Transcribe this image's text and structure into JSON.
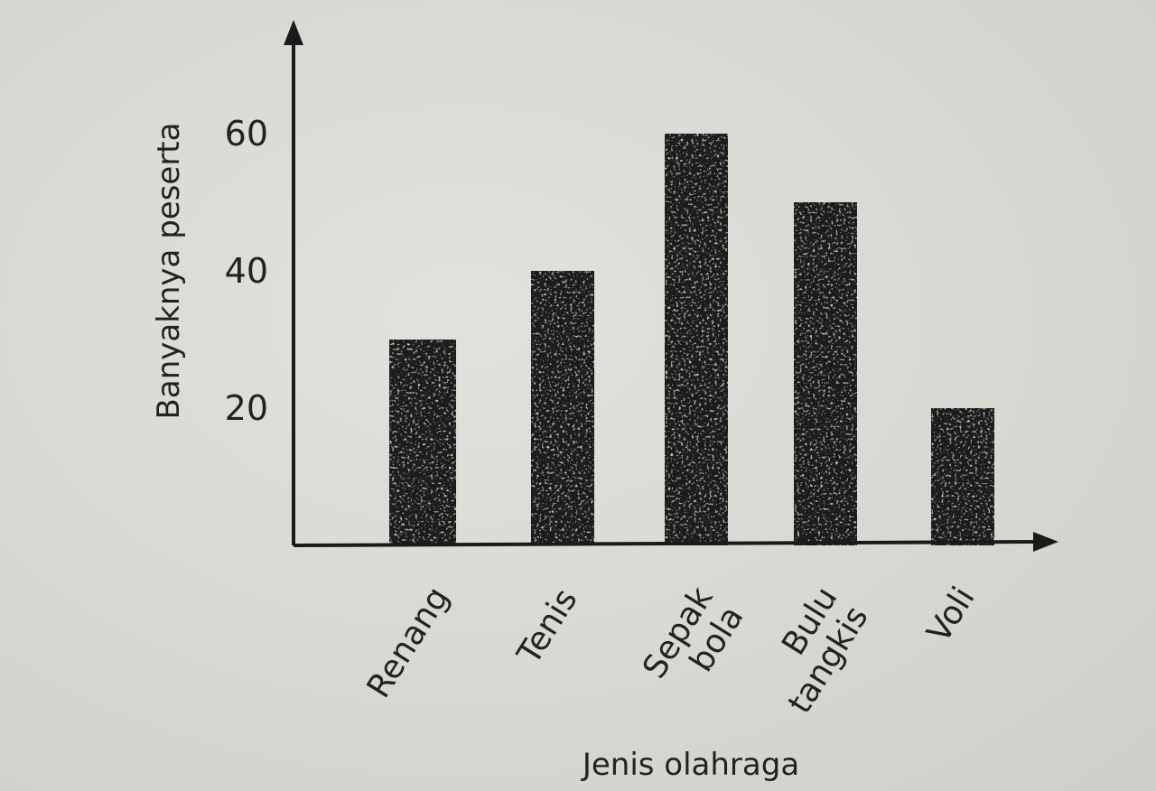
{
  "chart_data": {
    "type": "bar",
    "categories": [
      [
        "Renang"
      ],
      [
        "Tenis"
      ],
      [
        "Sepak",
        "bola"
      ],
      [
        "Bulu",
        "tangkis"
      ],
      [
        "Voli"
      ]
    ],
    "values": [
      30,
      40,
      60,
      50,
      20
    ],
    "title": "",
    "xlabel": "Jenis olahraga",
    "ylabel": "Banyaknya peserta",
    "yticks": [
      "20",
      "40",
      "60"
    ],
    "ytick_values": [
      20,
      40,
      60
    ],
    "ylim": [
      0,
      76
    ],
    "grid": false,
    "legend": "none",
    "bar_color": "#1e1e1e"
  }
}
